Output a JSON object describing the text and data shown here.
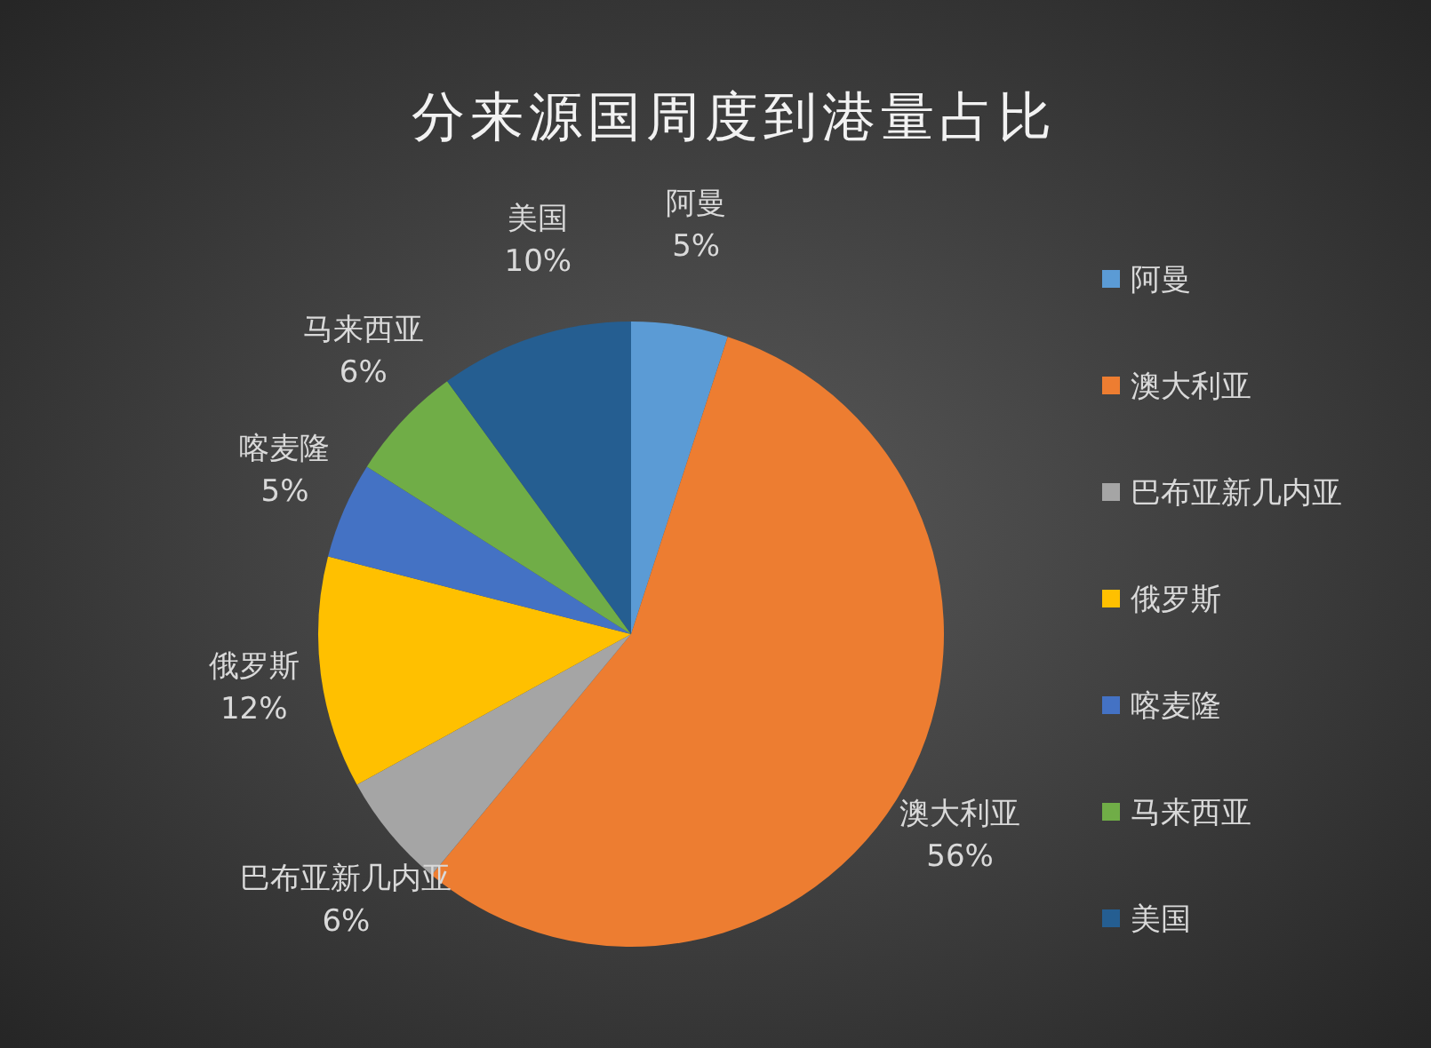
{
  "chart_data": {
    "type": "pie",
    "title": "分来源国周度到港量占比",
    "categories": [
      "阿曼",
      "澳大利亚",
      "巴布亚新几内亚",
      "俄罗斯",
      "喀麦隆",
      "马来西亚",
      "美国"
    ],
    "values": [
      5,
      56,
      6,
      12,
      5,
      6,
      10
    ],
    "colors": [
      "#5b9bd5",
      "#ed7d31",
      "#a5a5a5",
      "#ffc000",
      "#4472c4",
      "#70ad47",
      "#255e91"
    ],
    "value_labels": [
      "5%",
      "56%",
      "6%",
      "12%",
      "5%",
      "6%",
      "10%"
    ],
    "legend": "right"
  }
}
